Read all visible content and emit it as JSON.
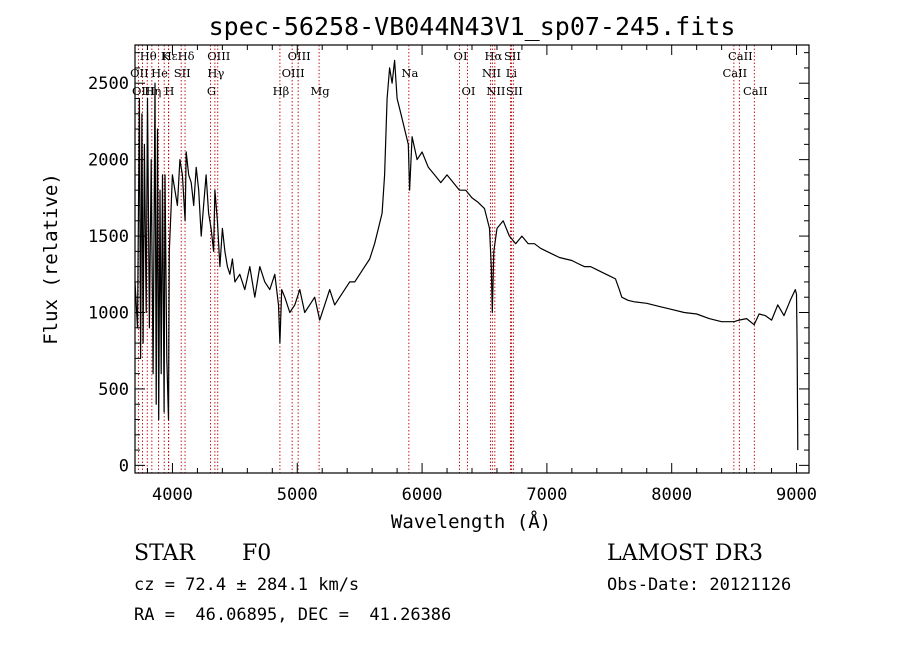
{
  "chart_data": {
    "type": "line",
    "title": "spec-56258-VB044N43V1_sp07-245.fits",
    "xlabel": "Wavelength (Å)",
    "ylabel": "Flux (relative)",
    "xlim": [
      3700,
      9100
    ],
    "ylim": [
      -50,
      2750
    ],
    "x_ticks": [
      4000,
      5000,
      6000,
      7000,
      8000,
      9000
    ],
    "x_tick_labels": [
      "4000",
      "5000",
      "6000",
      "7000",
      "8000",
      "9000"
    ],
    "y_ticks": [
      0,
      500,
      1000,
      1500,
      2000,
      2500
    ],
    "y_tick_labels": [
      "0",
      "500",
      "1000",
      "1500",
      "2000",
      "2500"
    ],
    "series": [
      {
        "name": "spectrum",
        "x": [
          3700,
          3720,
          3735,
          3745,
          3755,
          3765,
          3775,
          3790,
          3800,
          3815,
          3830,
          3845,
          3860,
          3870,
          3880,
          3890,
          3900,
          3910,
          3920,
          3933,
          3940,
          3955,
          3968,
          3975,
          3990,
          4000,
          4020,
          4040,
          4060,
          4080,
          4101,
          4110,
          4130,
          4150,
          4170,
          4190,
          4210,
          4230,
          4250,
          4270,
          4290,
          4310,
          4330,
          4340,
          4360,
          4380,
          4400,
          4420,
          4440,
          4460,
          4480,
          4500,
          4540,
          4580,
          4620,
          4660,
          4700,
          4740,
          4780,
          4820,
          4850,
          4861,
          4875,
          4900,
          4940,
          4980,
          5020,
          5060,
          5100,
          5140,
          5180,
          5220,
          5260,
          5300,
          5340,
          5380,
          5420,
          5460,
          5500,
          5540,
          5580,
          5620,
          5650,
          5680,
          5700,
          5720,
          5740,
          5760,
          5780,
          5800,
          5830,
          5860,
          5890,
          5900,
          5920,
          5960,
          6000,
          6050,
          6100,
          6150,
          6200,
          6250,
          6300,
          6350,
          6400,
          6450,
          6500,
          6540,
          6555,
          6563,
          6575,
          6600,
          6650,
          6700,
          6750,
          6800,
          6850,
          6900,
          6950,
          7000,
          7050,
          7100,
          7150,
          7200,
          7250,
          7300,
          7350,
          7400,
          7450,
          7500,
          7550,
          7580,
          7600,
          7650,
          7700,
          7800,
          7900,
          8000,
          8100,
          8200,
          8300,
          8400,
          8500,
          8540,
          8600,
          8660,
          8700,
          8750,
          8800,
          8850,
          8900,
          8950,
          8990,
          9000,
          9005,
          9010
        ],
        "values": [
          1200,
          900,
          2400,
          700,
          2300,
          800,
          2100,
          1000,
          2400,
          900,
          2000,
          600,
          2500,
          400,
          2200,
          300,
          1800,
          600,
          1900,
          350,
          1900,
          700,
          300,
          1400,
          1700,
          1900,
          1800,
          1700,
          2000,
          1900,
          1600,
          2050,
          1900,
          1850,
          1700,
          1950,
          1800,
          1500,
          1700,
          1900,
          1650,
          1550,
          1400,
          1800,
          1600,
          1300,
          1550,
          1400,
          1300,
          1250,
          1350,
          1200,
          1250,
          1150,
          1300,
          1100,
          1300,
          1200,
          1150,
          1250,
          1050,
          800,
          1150,
          1100,
          1000,
          1050,
          1150,
          1000,
          1050,
          1100,
          950,
          1050,
          1150,
          1050,
          1100,
          1150,
          1200,
          1200,
          1250,
          1300,
          1350,
          1450,
          1550,
          1650,
          1900,
          2400,
          2600,
          2500,
          2650,
          2400,
          2300,
          2200,
          2100,
          1800,
          2150,
          2000,
          2050,
          1950,
          1900,
          1850,
          1900,
          1850,
          1800,
          1800,
          1750,
          1720,
          1680,
          1550,
          1300,
          1000,
          1400,
          1550,
          1600,
          1500,
          1450,
          1500,
          1450,
          1450,
          1420,
          1400,
          1380,
          1360,
          1350,
          1340,
          1320,
          1300,
          1300,
          1280,
          1260,
          1240,
          1220,
          1150,
          1100,
          1080,
          1070,
          1060,
          1040,
          1020,
          1000,
          990,
          960,
          940,
          940,
          950,
          960,
          920,
          990,
          980,
          950,
          1050,
          980,
          1080,
          1150,
          1120,
          800,
          100
        ],
        "color": "#000000"
      }
    ],
    "line_markers": [
      {
        "label": "Hδ",
        "x": 4101,
        "row": 1
      },
      {
        "label": "K",
        "x": 3934,
        "row": 1
      },
      {
        "label": "Hε",
        "x": 3970,
        "row": 1
      },
      {
        "label": "Hθ",
        "x": 3798,
        "row": 1
      },
      {
        "label": "OII",
        "x": 3727,
        "row": 2
      },
      {
        "label": "He",
        "x": 3889,
        "row": 2
      },
      {
        "label": "SII",
        "x": 4070,
        "row": 2
      },
      {
        "label": "OIII",
        "x": 3760,
        "row": 3
      },
      {
        "label": "Hη",
        "x": 3835,
        "row": 3
      },
      {
        "label": "H",
        "x": 3968,
        "row": 3
      },
      {
        "label": "OIII",
        "x": 4363,
        "row": 1
      },
      {
        "label": "Hγ",
        "x": 4340,
        "row": 2
      },
      {
        "label": "G",
        "x": 4305,
        "row": 3
      },
      {
        "label": "OIII",
        "x": 5007,
        "row": 1
      },
      {
        "label": "OIII",
        "x": 4959,
        "row": 2
      },
      {
        "label": "Hβ",
        "x": 4861,
        "row": 3
      },
      {
        "label": "Mg",
        "x": 5175,
        "row": 3
      },
      {
        "label": "Na",
        "x": 5894,
        "row": 2
      },
      {
        "label": "OI",
        "x": 6300,
        "row": 1
      },
      {
        "label": "OI",
        "x": 6364,
        "row": 3
      },
      {
        "label": "Hα",
        "x": 6563,
        "row": 1
      },
      {
        "label": "SII",
        "x": 6716,
        "row": 1
      },
      {
        "label": "NII",
        "x": 6548,
        "row": 2
      },
      {
        "label": "Li",
        "x": 6708,
        "row": 2
      },
      {
        "label": "NII",
        "x": 6583,
        "row": 3
      },
      {
        "label": "SII",
        "x": 6731,
        "row": 3
      },
      {
        "label": "CaII",
        "x": 8542,
        "row": 1
      },
      {
        "label": "CaII",
        "x": 8498,
        "row": 2
      },
      {
        "label": "CaII",
        "x": 8662,
        "row": 3
      }
    ]
  },
  "info": {
    "object_class": "STAR",
    "subclass": "F0",
    "survey": "LAMOST DR3",
    "redshift_line": "cz = 72.4 ± 284.1 km/s",
    "obs_date_line": "Obs-Date: 20121126",
    "coords_line": "RA =  46.06895, DEC =  41.26386"
  }
}
